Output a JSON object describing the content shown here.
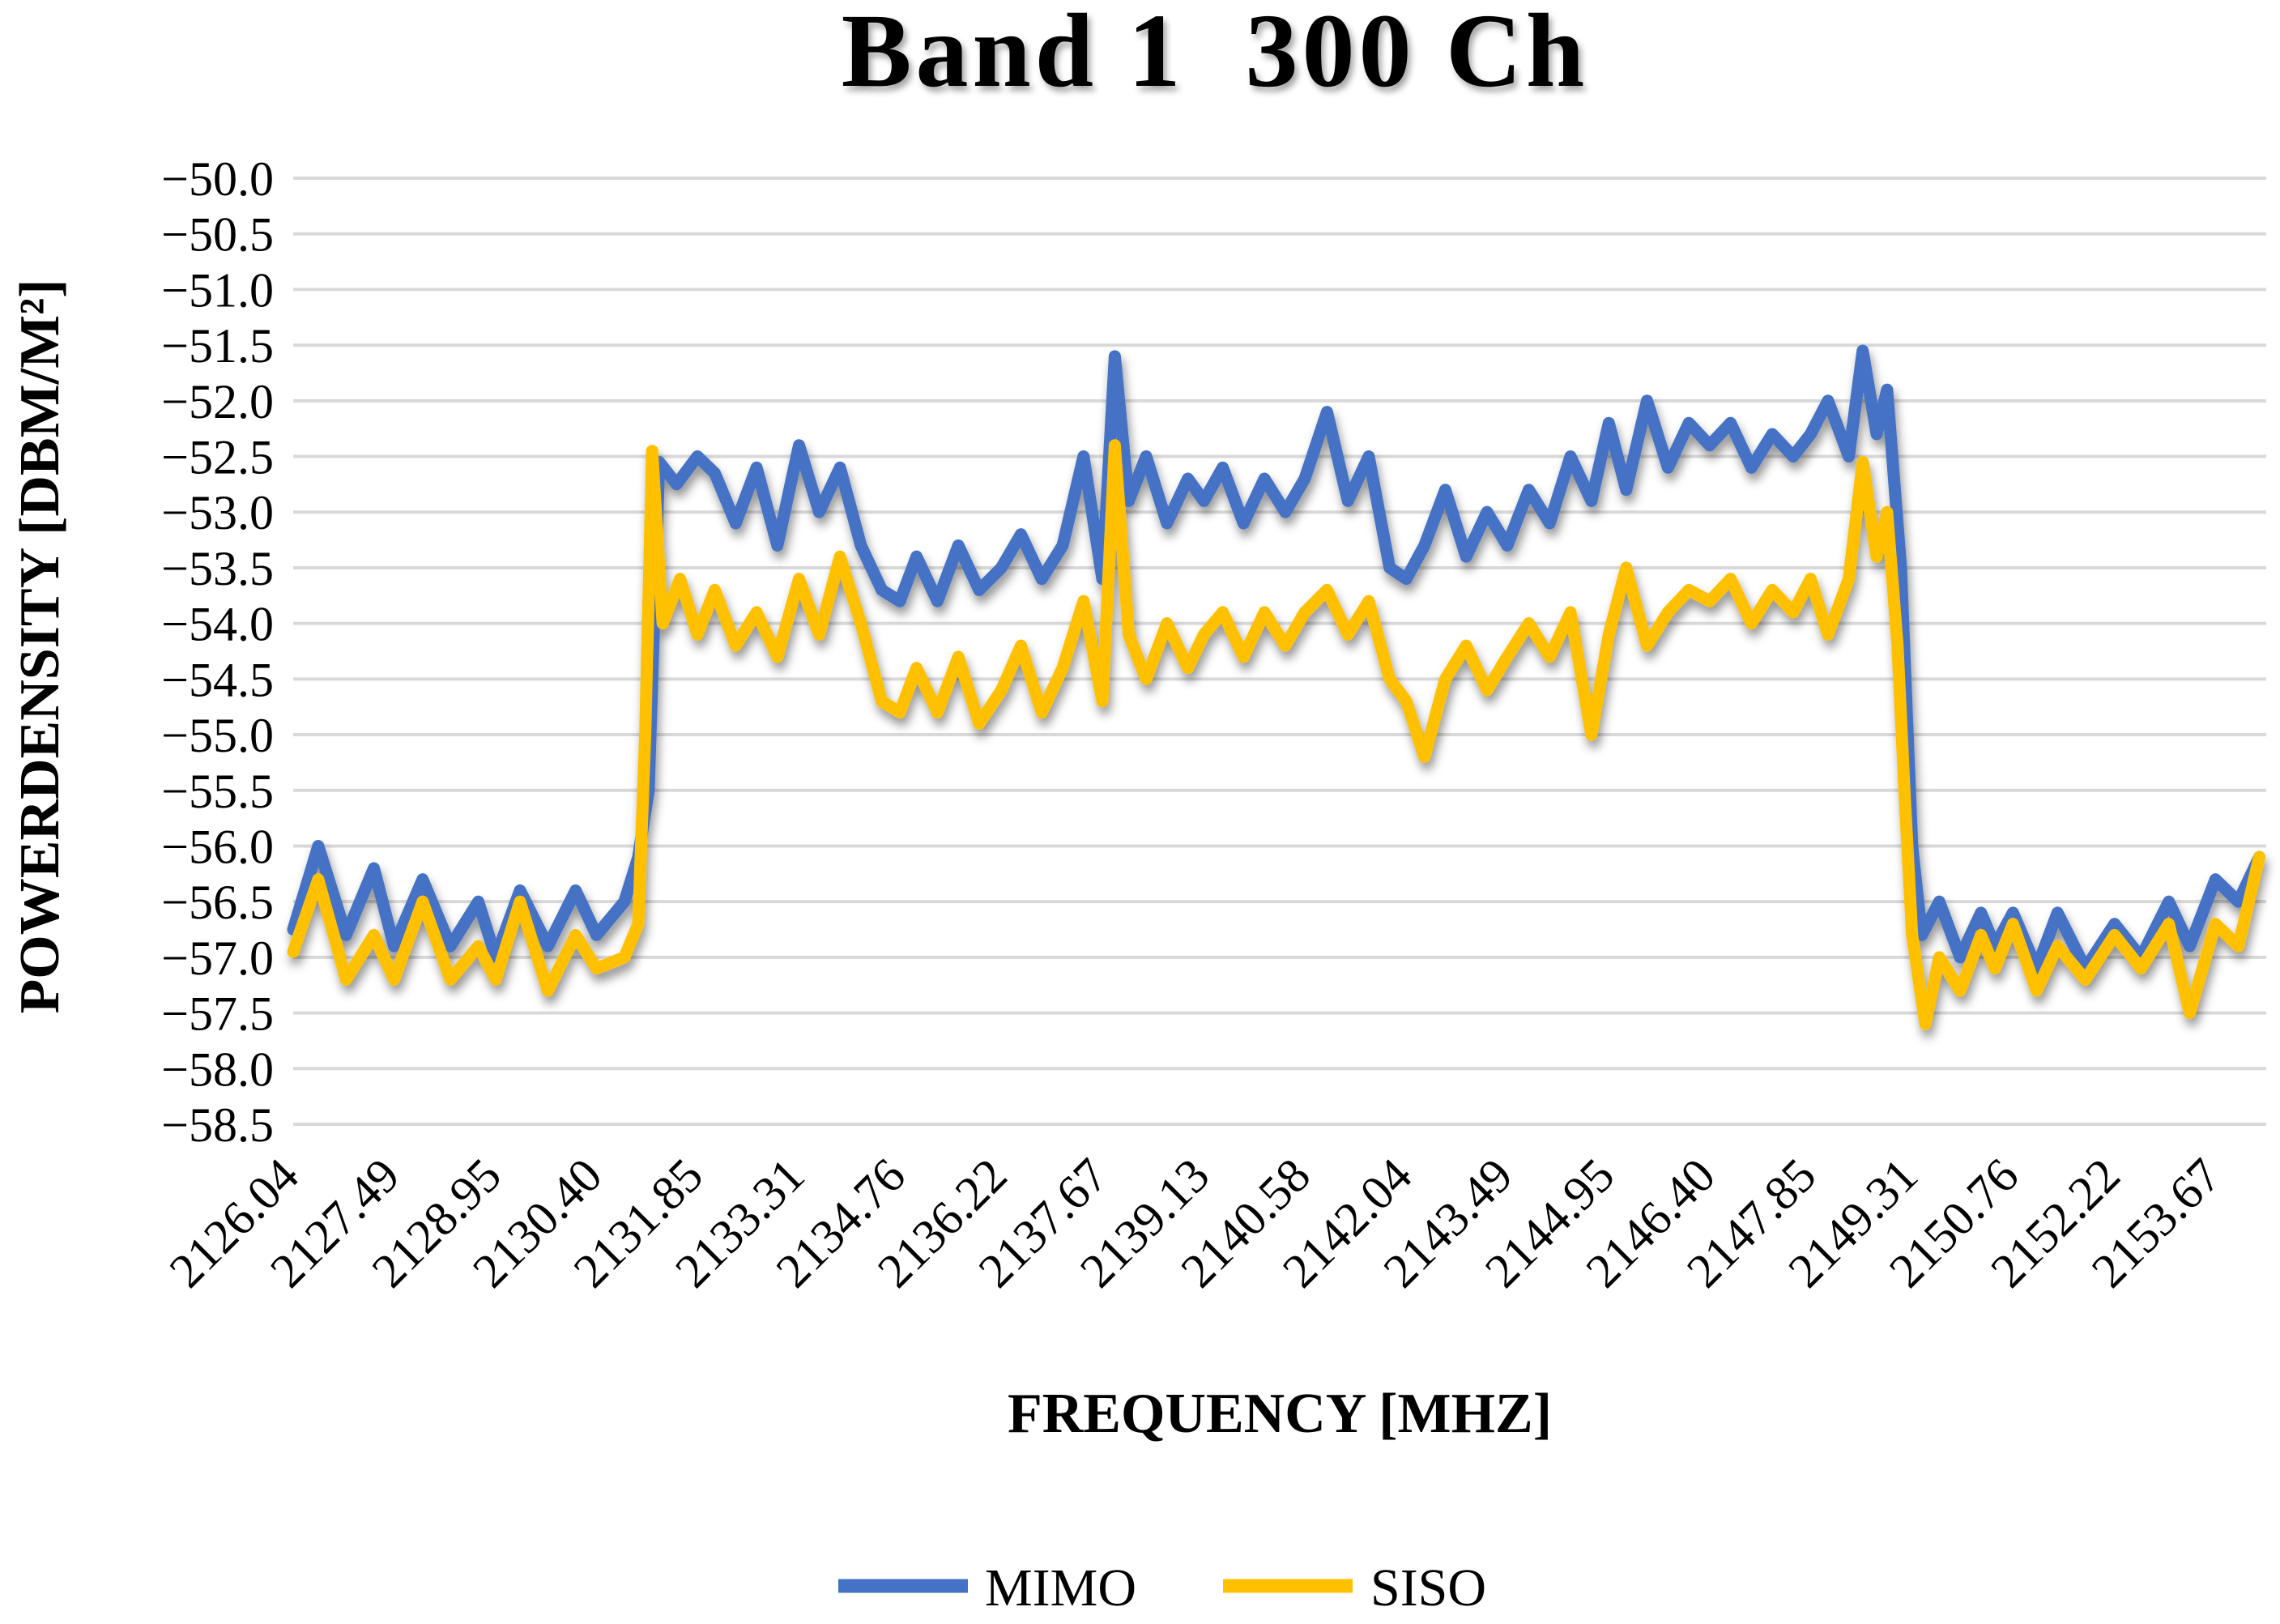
{
  "chart_data": {
    "type": "line",
    "title": "Band 1  300 Ch",
    "xlabel": "FREQUENCY [MHZ]",
    "ylabel": "POWERDENSITY [DBM/M²]",
    "x_range": [
      2126.04,
      2154.4
    ],
    "ylim": [
      -58.5,
      -50.0
    ],
    "y_ticks": [
      "−50.0",
      "−50.5",
      "−51.0",
      "−51.5",
      "−52.0",
      "−52.5",
      "−53.0",
      "−53.5",
      "−54.0",
      "−54.5",
      "−55.0",
      "−55.5",
      "−56.0",
      "−56.5",
      "−57.0",
      "−57.5",
      "−58.0",
      "−58.5"
    ],
    "x_ticks": [
      {
        "value": 2126.04,
        "label": "2126.04"
      },
      {
        "value": 2127.49,
        "label": "2127.49"
      },
      {
        "value": 2128.95,
        "label": "2128.95"
      },
      {
        "value": 2130.4,
        "label": "2130.40"
      },
      {
        "value": 2131.85,
        "label": "2131.85"
      },
      {
        "value": 2133.31,
        "label": "2133.31"
      },
      {
        "value": 2134.76,
        "label": "2134.76"
      },
      {
        "value": 2136.22,
        "label": "2136.22"
      },
      {
        "value": 2137.67,
        "label": "2137.67"
      },
      {
        "value": 2139.13,
        "label": "2139.13"
      },
      {
        "value": 2140.58,
        "label": "2140.58"
      },
      {
        "value": 2142.04,
        "label": "2142.04"
      },
      {
        "value": 2143.49,
        "label": "2143.49"
      },
      {
        "value": 2144.95,
        "label": "2144.95"
      },
      {
        "value": 2146.4,
        "label": "2146.40"
      },
      {
        "value": 2147.85,
        "label": "2147.85"
      },
      {
        "value": 2149.31,
        "label": "2149.31"
      },
      {
        "value": 2150.76,
        "label": "2150.76"
      },
      {
        "value": 2152.22,
        "label": "2152.22"
      },
      {
        "value": 2153.67,
        "label": "2153.67"
      }
    ],
    "grid": true,
    "legend_position": "bottom",
    "series": [
      {
        "name": "MIMO",
        "color": "#4472c4",
        "points": [
          [
            2126.04,
            -56.75
          ],
          [
            2126.4,
            -56.0
          ],
          [
            2126.8,
            -56.8
          ],
          [
            2127.2,
            -56.2
          ],
          [
            2127.49,
            -56.9
          ],
          [
            2127.9,
            -56.3
          ],
          [
            2128.3,
            -56.9
          ],
          [
            2128.7,
            -56.5
          ],
          [
            2128.95,
            -57.0
          ],
          [
            2129.3,
            -56.4
          ],
          [
            2129.7,
            -56.9
          ],
          [
            2130.1,
            -56.4
          ],
          [
            2130.4,
            -56.8
          ],
          [
            2130.8,
            -56.5
          ],
          [
            2131.0,
            -56.1
          ],
          [
            2131.15,
            -55.5
          ],
          [
            2131.3,
            -52.55
          ],
          [
            2131.55,
            -52.75
          ],
          [
            2131.85,
            -52.5
          ],
          [
            2132.1,
            -52.65
          ],
          [
            2132.4,
            -53.1
          ],
          [
            2132.7,
            -52.6
          ],
          [
            2133.0,
            -53.3
          ],
          [
            2133.31,
            -52.4
          ],
          [
            2133.6,
            -53.0
          ],
          [
            2133.9,
            -52.6
          ],
          [
            2134.2,
            -53.3
          ],
          [
            2134.5,
            -53.7
          ],
          [
            2134.76,
            -53.8
          ],
          [
            2135.0,
            -53.4
          ],
          [
            2135.3,
            -53.8
          ],
          [
            2135.6,
            -53.3
          ],
          [
            2135.9,
            -53.7
          ],
          [
            2136.22,
            -53.5
          ],
          [
            2136.5,
            -53.2
          ],
          [
            2136.8,
            -53.6
          ],
          [
            2137.1,
            -53.3
          ],
          [
            2137.4,
            -52.5
          ],
          [
            2137.67,
            -53.6
          ],
          [
            2137.85,
            -51.6
          ],
          [
            2138.05,
            -52.9
          ],
          [
            2138.3,
            -52.5
          ],
          [
            2138.6,
            -53.1
          ],
          [
            2138.9,
            -52.7
          ],
          [
            2139.13,
            -52.9
          ],
          [
            2139.4,
            -52.6
          ],
          [
            2139.7,
            -53.1
          ],
          [
            2140.0,
            -52.7
          ],
          [
            2140.3,
            -53.0
          ],
          [
            2140.58,
            -52.7
          ],
          [
            2140.9,
            -52.1
          ],
          [
            2141.2,
            -52.9
          ],
          [
            2141.5,
            -52.5
          ],
          [
            2141.8,
            -53.5
          ],
          [
            2142.04,
            -53.6
          ],
          [
            2142.3,
            -53.3
          ],
          [
            2142.6,
            -52.8
          ],
          [
            2142.9,
            -53.4
          ],
          [
            2143.2,
            -53.0
          ],
          [
            2143.49,
            -53.3
          ],
          [
            2143.8,
            -52.8
          ],
          [
            2144.1,
            -53.1
          ],
          [
            2144.4,
            -52.5
          ],
          [
            2144.7,
            -52.9
          ],
          [
            2144.95,
            -52.2
          ],
          [
            2145.2,
            -52.8
          ],
          [
            2145.5,
            -52.0
          ],
          [
            2145.8,
            -52.6
          ],
          [
            2146.1,
            -52.2
          ],
          [
            2146.4,
            -52.4
          ],
          [
            2146.7,
            -52.2
          ],
          [
            2147.0,
            -52.6
          ],
          [
            2147.3,
            -52.3
          ],
          [
            2147.6,
            -52.5
          ],
          [
            2147.85,
            -52.3
          ],
          [
            2148.1,
            -52.0
          ],
          [
            2148.4,
            -52.5
          ],
          [
            2148.6,
            -51.55
          ],
          [
            2148.8,
            -52.3
          ],
          [
            2148.95,
            -51.9
          ],
          [
            2149.15,
            -53.5
          ],
          [
            2149.31,
            -56.0
          ],
          [
            2149.45,
            -56.8
          ],
          [
            2149.7,
            -56.5
          ],
          [
            2150.0,
            -57.0
          ],
          [
            2150.3,
            -56.6
          ],
          [
            2150.5,
            -56.9
          ],
          [
            2150.76,
            -56.6
          ],
          [
            2151.1,
            -57.1
          ],
          [
            2151.4,
            -56.6
          ],
          [
            2151.8,
            -57.1
          ],
          [
            2152.22,
            -56.7
          ],
          [
            2152.6,
            -57.0
          ],
          [
            2153.0,
            -56.5
          ],
          [
            2153.3,
            -56.9
          ],
          [
            2153.67,
            -56.3
          ],
          [
            2154.0,
            -56.5
          ],
          [
            2154.3,
            -56.1
          ]
        ]
      },
      {
        "name": "SISO",
        "color": "#ffc000",
        "points": [
          [
            2126.04,
            -56.95
          ],
          [
            2126.4,
            -56.3
          ],
          [
            2126.8,
            -57.2
          ],
          [
            2127.2,
            -56.8
          ],
          [
            2127.49,
            -57.2
          ],
          [
            2127.9,
            -56.5
          ],
          [
            2128.3,
            -57.2
          ],
          [
            2128.7,
            -56.9
          ],
          [
            2128.95,
            -57.2
          ],
          [
            2129.3,
            -56.5
          ],
          [
            2129.7,
            -57.3
          ],
          [
            2130.1,
            -56.8
          ],
          [
            2130.4,
            -57.1
          ],
          [
            2130.8,
            -57.0
          ],
          [
            2131.0,
            -56.7
          ],
          [
            2131.1,
            -55.0
          ],
          [
            2131.2,
            -52.45
          ],
          [
            2131.35,
            -54.0
          ],
          [
            2131.6,
            -53.6
          ],
          [
            2131.85,
            -54.1
          ],
          [
            2132.1,
            -53.7
          ],
          [
            2132.4,
            -54.2
          ],
          [
            2132.7,
            -53.9
          ],
          [
            2133.0,
            -54.3
          ],
          [
            2133.31,
            -53.6
          ],
          [
            2133.6,
            -54.1
          ],
          [
            2133.9,
            -53.4
          ],
          [
            2134.2,
            -54.0
          ],
          [
            2134.5,
            -54.7
          ],
          [
            2134.76,
            -54.8
          ],
          [
            2135.0,
            -54.4
          ],
          [
            2135.3,
            -54.8
          ],
          [
            2135.6,
            -54.3
          ],
          [
            2135.9,
            -54.9
          ],
          [
            2136.22,
            -54.6
          ],
          [
            2136.5,
            -54.2
          ],
          [
            2136.8,
            -54.8
          ],
          [
            2137.1,
            -54.4
          ],
          [
            2137.4,
            -53.8
          ],
          [
            2137.67,
            -54.7
          ],
          [
            2137.85,
            -52.4
          ],
          [
            2138.05,
            -54.1
          ],
          [
            2138.3,
            -54.5
          ],
          [
            2138.6,
            -54.0
          ],
          [
            2138.9,
            -54.4
          ],
          [
            2139.13,
            -54.1
          ],
          [
            2139.4,
            -53.9
          ],
          [
            2139.7,
            -54.3
          ],
          [
            2140.0,
            -53.9
          ],
          [
            2140.3,
            -54.2
          ],
          [
            2140.58,
            -53.9
          ],
          [
            2140.9,
            -53.7
          ],
          [
            2141.2,
            -54.1
          ],
          [
            2141.5,
            -53.8
          ],
          [
            2141.8,
            -54.5
          ],
          [
            2142.04,
            -54.7
          ],
          [
            2142.3,
            -55.2
          ],
          [
            2142.6,
            -54.5
          ],
          [
            2142.9,
            -54.2
          ],
          [
            2143.2,
            -54.6
          ],
          [
            2143.49,
            -54.3
          ],
          [
            2143.8,
            -54.0
          ],
          [
            2144.1,
            -54.3
          ],
          [
            2144.4,
            -53.9
          ],
          [
            2144.7,
            -55.0
          ],
          [
            2144.95,
            -54.1
          ],
          [
            2145.2,
            -53.5
          ],
          [
            2145.5,
            -54.2
          ],
          [
            2145.8,
            -53.9
          ],
          [
            2146.1,
            -53.7
          ],
          [
            2146.4,
            -53.8
          ],
          [
            2146.7,
            -53.6
          ],
          [
            2147.0,
            -54.0
          ],
          [
            2147.3,
            -53.7
          ],
          [
            2147.6,
            -53.9
          ],
          [
            2147.85,
            -53.6
          ],
          [
            2148.1,
            -54.1
          ],
          [
            2148.4,
            -53.6
          ],
          [
            2148.6,
            -52.55
          ],
          [
            2148.8,
            -53.4
          ],
          [
            2148.95,
            -53.0
          ],
          [
            2149.1,
            -54.2
          ],
          [
            2149.2,
            -55.5
          ],
          [
            2149.31,
            -56.8
          ],
          [
            2149.5,
            -57.6
          ],
          [
            2149.7,
            -57.0
          ],
          [
            2150.0,
            -57.3
          ],
          [
            2150.3,
            -56.8
          ],
          [
            2150.5,
            -57.1
          ],
          [
            2150.76,
            -56.7
          ],
          [
            2151.1,
            -57.3
          ],
          [
            2151.4,
            -56.9
          ],
          [
            2151.8,
            -57.2
          ],
          [
            2152.22,
            -56.8
          ],
          [
            2152.6,
            -57.1
          ],
          [
            2153.0,
            -56.7
          ],
          [
            2153.3,
            -57.5
          ],
          [
            2153.67,
            -56.7
          ],
          [
            2154.0,
            -56.9
          ],
          [
            2154.3,
            -56.1
          ]
        ]
      }
    ]
  }
}
